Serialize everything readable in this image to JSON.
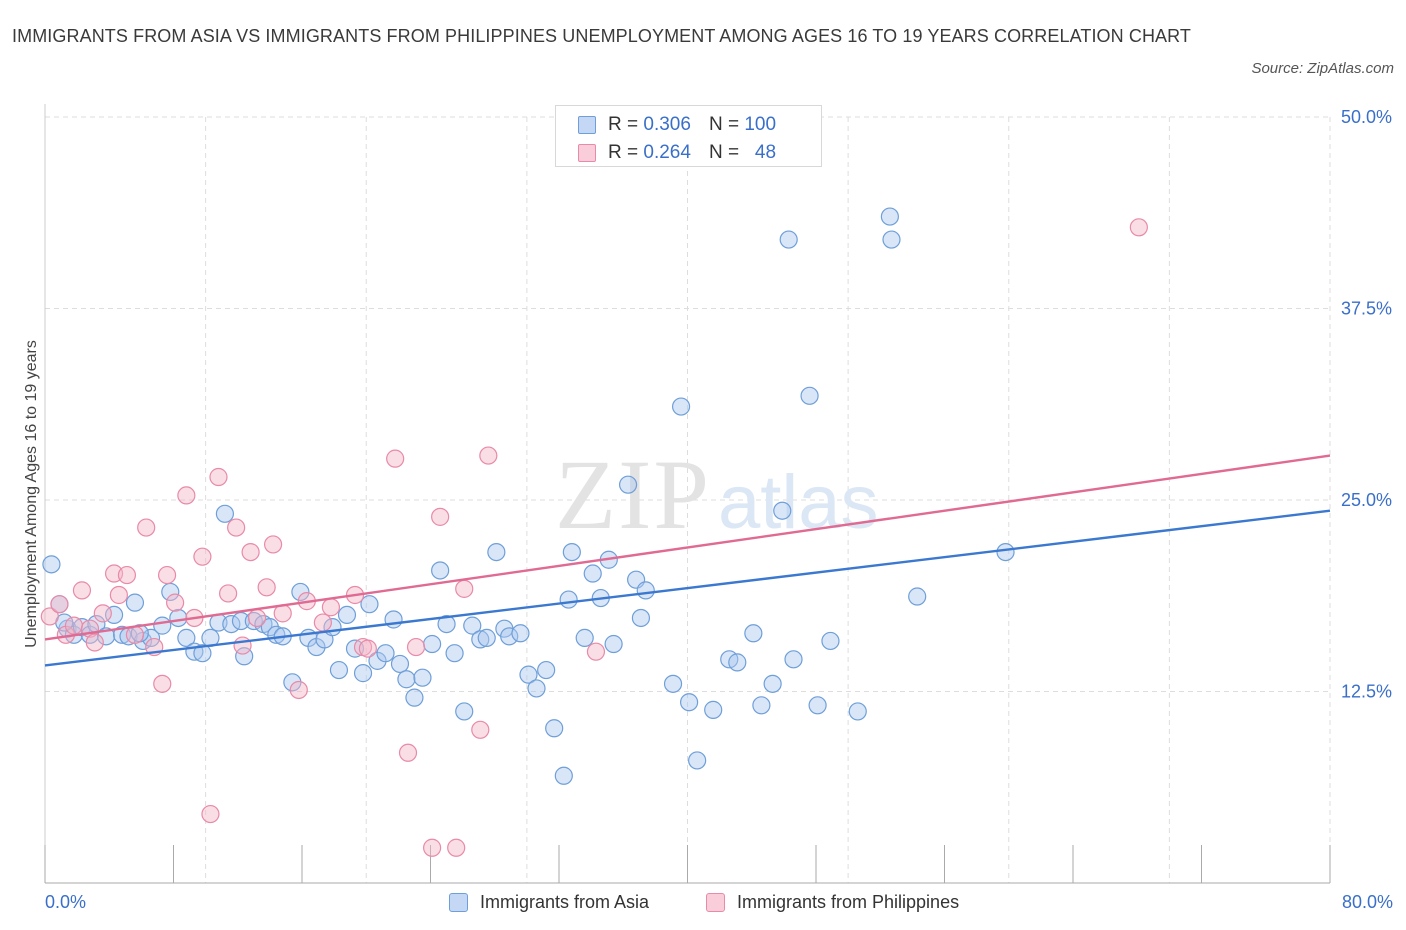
{
  "header": {
    "title": "IMMIGRANTS FROM ASIA VS IMMIGRANTS FROM PHILIPPINES UNEMPLOYMENT AMONG AGES 16 TO 19 YEARS CORRELATION CHART",
    "source": "Source: ZipAtlas.com"
  },
  "watermark": {
    "zip": "ZIP",
    "atlas": "atlas"
  },
  "stats_legend": {
    "r_label": "R =",
    "n_label": "N =",
    "rows": [
      {
        "r": "0.306",
        "n": "100"
      },
      {
        "r": "0.264",
        "n": "48"
      }
    ]
  },
  "colors": {
    "asia_fill": "#aac8f0",
    "asia_stroke": "#6f9fd8",
    "asia_line": "#3b78d0",
    "phil_fill": "#f5b5c8",
    "phil_stroke": "#e88aa8",
    "phil_line": "#e06a92",
    "grid": "#dddddd",
    "tick_label": "#3a6fc9"
  },
  "chart_data": {
    "type": "scatter",
    "title": "IMMIGRANTS FROM ASIA VS IMMIGRANTS FROM PHILIPPINES UNEMPLOYMENT AMONG AGES 16 TO 19 YEARS CORRELATION CHART",
    "xlabel": "",
    "ylabel": "Unemployment Among Ages 16 to 19 years",
    "xlim": [
      0,
      80
    ],
    "ylim": [
      0,
      50
    ],
    "x_tick_labels": [
      "0.0%",
      "80.0%"
    ],
    "y_ticks": [
      12.5,
      25,
      37.5,
      50
    ],
    "y_tick_labels": [
      "12.5%",
      "25.0%",
      "37.5%",
      "50.0%"
    ],
    "grid": true,
    "series": [
      {
        "name": "Immigrants from Asia",
        "R": 0.306,
        "N": 100,
        "trend": {
          "x": [
            0,
            80
          ],
          "y": [
            14.2,
            24.3
          ]
        },
        "points": [
          [
            0.4,
            20.8
          ],
          [
            0.9,
            18.2
          ],
          [
            1.4,
            16.6
          ],
          [
            1.8,
            16.2
          ],
          [
            2.3,
            16.7
          ],
          [
            2.8,
            16.2
          ],
          [
            3.2,
            16.9
          ],
          [
            3.8,
            16.1
          ],
          [
            4.3,
            17.5
          ],
          [
            4.8,
            16.2
          ],
          [
            5.2,
            16.1
          ],
          [
            5.6,
            18.3
          ],
          [
            6.1,
            15.8
          ],
          [
            6.6,
            16.0
          ],
          [
            7.3,
            16.8
          ],
          [
            7.8,
            19.0
          ],
          [
            8.3,
            17.3
          ],
          [
            8.8,
            16.0
          ],
          [
            9.3,
            15.1
          ],
          [
            9.8,
            15.0
          ],
          [
            10.3,
            16.0
          ],
          [
            10.8,
            17.0
          ],
          [
            11.2,
            24.1
          ],
          [
            11.6,
            16.9
          ],
          [
            12.2,
            17.1
          ],
          [
            12.4,
            14.8
          ],
          [
            13.0,
            17.1
          ],
          [
            13.6,
            16.9
          ],
          [
            14.0,
            16.7
          ],
          [
            14.4,
            16.2
          ],
          [
            14.8,
            16.1
          ],
          [
            15.4,
            13.1
          ],
          [
            15.9,
            19.0
          ],
          [
            16.4,
            16.0
          ],
          [
            16.9,
            15.4
          ],
          [
            17.4,
            15.9
          ],
          [
            17.9,
            16.7
          ],
          [
            18.3,
            13.9
          ],
          [
            18.8,
            17.5
          ],
          [
            19.3,
            15.3
          ],
          [
            19.8,
            13.7
          ],
          [
            20.2,
            18.2
          ],
          [
            20.7,
            14.5
          ],
          [
            21.2,
            15.0
          ],
          [
            21.7,
            17.2
          ],
          [
            22.1,
            14.3
          ],
          [
            22.5,
            13.3
          ],
          [
            23.0,
            12.1
          ],
          [
            23.5,
            13.4
          ],
          [
            24.1,
            15.6
          ],
          [
            24.6,
            20.4
          ],
          [
            25.0,
            16.9
          ],
          [
            25.5,
            15.0
          ],
          [
            26.1,
            11.2
          ],
          [
            26.6,
            16.8
          ],
          [
            27.1,
            15.9
          ],
          [
            27.5,
            16.0
          ],
          [
            28.1,
            21.6
          ],
          [
            28.6,
            16.6
          ],
          [
            28.9,
            16.1
          ],
          [
            29.6,
            16.3
          ],
          [
            30.1,
            13.6
          ],
          [
            30.6,
            12.7
          ],
          [
            31.2,
            13.9
          ],
          [
            31.7,
            10.1
          ],
          [
            32.3,
            7.0
          ],
          [
            32.6,
            18.5
          ],
          [
            32.8,
            21.6
          ],
          [
            33.6,
            16.0
          ],
          [
            34.1,
            20.2
          ],
          [
            34.6,
            18.6
          ],
          [
            35.1,
            21.1
          ],
          [
            35.4,
            15.6
          ],
          [
            36.3,
            26.0
          ],
          [
            36.8,
            19.8
          ],
          [
            37.4,
            19.1
          ],
          [
            37.1,
            17.3
          ],
          [
            39.1,
            13.0
          ],
          [
            39.6,
            31.1
          ],
          [
            40.1,
            11.8
          ],
          [
            40.6,
            8.0
          ],
          [
            41.6,
            11.3
          ],
          [
            42.6,
            14.6
          ],
          [
            43.1,
            14.4
          ],
          [
            44.1,
            16.3
          ],
          [
            44.6,
            11.6
          ],
          [
            45.3,
            13.0
          ],
          [
            45.9,
            24.3
          ],
          [
            46.6,
            14.6
          ],
          [
            46.3,
            42.0
          ],
          [
            47.6,
            31.8
          ],
          [
            48.1,
            11.6
          ],
          [
            48.9,
            15.8
          ],
          [
            50.6,
            11.2
          ],
          [
            52.6,
            43.5
          ],
          [
            52.7,
            42.0
          ],
          [
            54.3,
            18.7
          ],
          [
            59.8,
            21.6
          ],
          [
            1.2,
            17.0
          ],
          [
            5.9,
            16.3
          ]
        ]
      },
      {
        "name": "Immigrants from Philippines",
        "R": 0.264,
        "N": 48,
        "trend": {
          "x": [
            0,
            80
          ],
          "y": [
            15.9,
            27.9
          ]
        },
        "points": [
          [
            0.3,
            17.4
          ],
          [
            0.9,
            18.2
          ],
          [
            1.3,
            16.2
          ],
          [
            1.8,
            16.8
          ],
          [
            2.3,
            19.1
          ],
          [
            2.8,
            16.6
          ],
          [
            3.1,
            15.7
          ],
          [
            3.6,
            17.6
          ],
          [
            4.3,
            20.2
          ],
          [
            4.6,
            18.8
          ],
          [
            5.1,
            20.1
          ],
          [
            5.6,
            16.2
          ],
          [
            6.3,
            23.2
          ],
          [
            6.8,
            15.4
          ],
          [
            7.3,
            13.0
          ],
          [
            7.6,
            20.1
          ],
          [
            8.1,
            18.3
          ],
          [
            8.8,
            25.3
          ],
          [
            9.3,
            17.3
          ],
          [
            9.8,
            21.3
          ],
          [
            10.3,
            4.5
          ],
          [
            10.8,
            26.5
          ],
          [
            11.4,
            18.9
          ],
          [
            11.9,
            23.2
          ],
          [
            12.3,
            15.5
          ],
          [
            12.8,
            21.6
          ],
          [
            13.2,
            17.3
          ],
          [
            13.8,
            19.3
          ],
          [
            14.2,
            22.1
          ],
          [
            14.8,
            17.6
          ],
          [
            15.8,
            12.6
          ],
          [
            16.3,
            18.4
          ],
          [
            17.3,
            17.0
          ],
          [
            17.8,
            18.0
          ],
          [
            19.3,
            18.8
          ],
          [
            19.8,
            15.4
          ],
          [
            20.1,
            15.3
          ],
          [
            21.8,
            27.7
          ],
          [
            22.6,
            8.5
          ],
          [
            23.1,
            15.4
          ],
          [
            24.1,
            2.3
          ],
          [
            24.6,
            23.9
          ],
          [
            25.6,
            2.3
          ],
          [
            26.1,
            19.2
          ],
          [
            27.1,
            10.0
          ],
          [
            27.6,
            27.9
          ],
          [
            34.3,
            15.1
          ],
          [
            68.1,
            42.8
          ]
        ]
      }
    ]
  },
  "bottom_legend": [
    {
      "label": "Immigrants from Asia"
    },
    {
      "label": "Immigrants from Philippines"
    }
  ]
}
